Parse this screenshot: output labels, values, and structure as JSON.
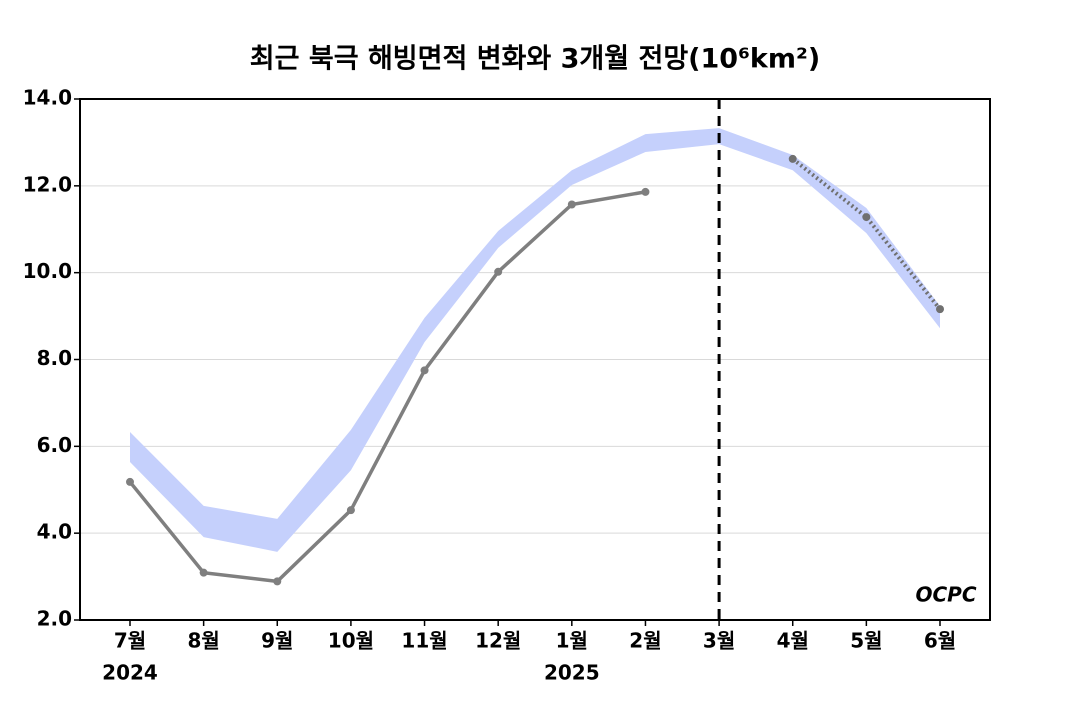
{
  "chart_data": {
    "type": "line",
    "title": "최근 북극 해빙면적 변화와 3개월 전망(10⁶km²)",
    "categories": [
      "7월",
      "8월",
      "9월",
      "10월",
      "11월",
      "12월",
      "1월",
      "2월",
      "3월",
      "4월",
      "5월",
      "6월"
    ],
    "x_sublabels": [
      "2024",
      null,
      null,
      null,
      null,
      null,
      "2025",
      null,
      null,
      null,
      null,
      null
    ],
    "series": [
      {
        "color": "#7f7f7f",
        "style": "solid",
        "values": [
          5.18,
          3.09,
          2.89,
          4.53,
          7.75,
          10.02,
          11.57,
          11.86,
          null,
          null,
          null,
          null
        ]
      },
      {
        "color": "#707070",
        "style": "dotted",
        "values": [
          null,
          null,
          null,
          null,
          null,
          null,
          null,
          null,
          null,
          12.62,
          11.28,
          9.16
        ]
      }
    ],
    "band": {
      "color": "#c5d0fc",
      "upper": [
        6.33,
        4.63,
        4.33,
        6.38,
        8.96,
        10.96,
        12.36,
        13.19,
        13.33,
        12.71,
        11.49,
        9.23
      ],
      "lower": [
        5.64,
        3.91,
        3.57,
        5.45,
        8.4,
        10.57,
        12.02,
        12.78,
        12.96,
        12.36,
        10.91,
        8.72
      ]
    },
    "vline": "3월",
    "ylim": [
      2,
      14
    ],
    "yticks": [
      {
        "value": 2,
        "label": "2.0"
      },
      {
        "value": 4,
        "label": "4.0"
      },
      {
        "value": 6,
        "label": "6.0"
      },
      {
        "value": 8,
        "label": "8.0"
      },
      {
        "value": 10,
        "label": "10.0"
      },
      {
        "value": 12,
        "label": "12.0"
      },
      {
        "value": 14,
        "label": "14.0"
      }
    ],
    "grid": true,
    "logo": "OCPC"
  }
}
